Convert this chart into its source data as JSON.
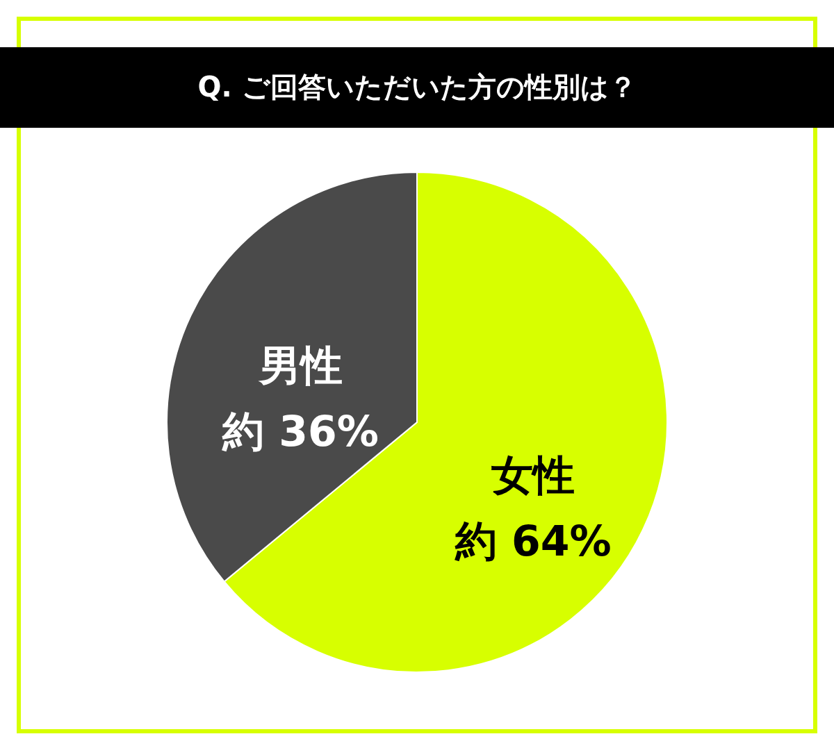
{
  "chart_data": {
    "type": "pie",
    "title": "Q. ご回答いただいた方の性別は？",
    "categories": [
      "女性",
      "男性"
    ],
    "values": [
      64,
      36
    ],
    "colors": [
      "#d7ff00",
      "#4a4a4a"
    ],
    "value_labels": [
      "約 64%",
      "約 36%"
    ]
  }
}
